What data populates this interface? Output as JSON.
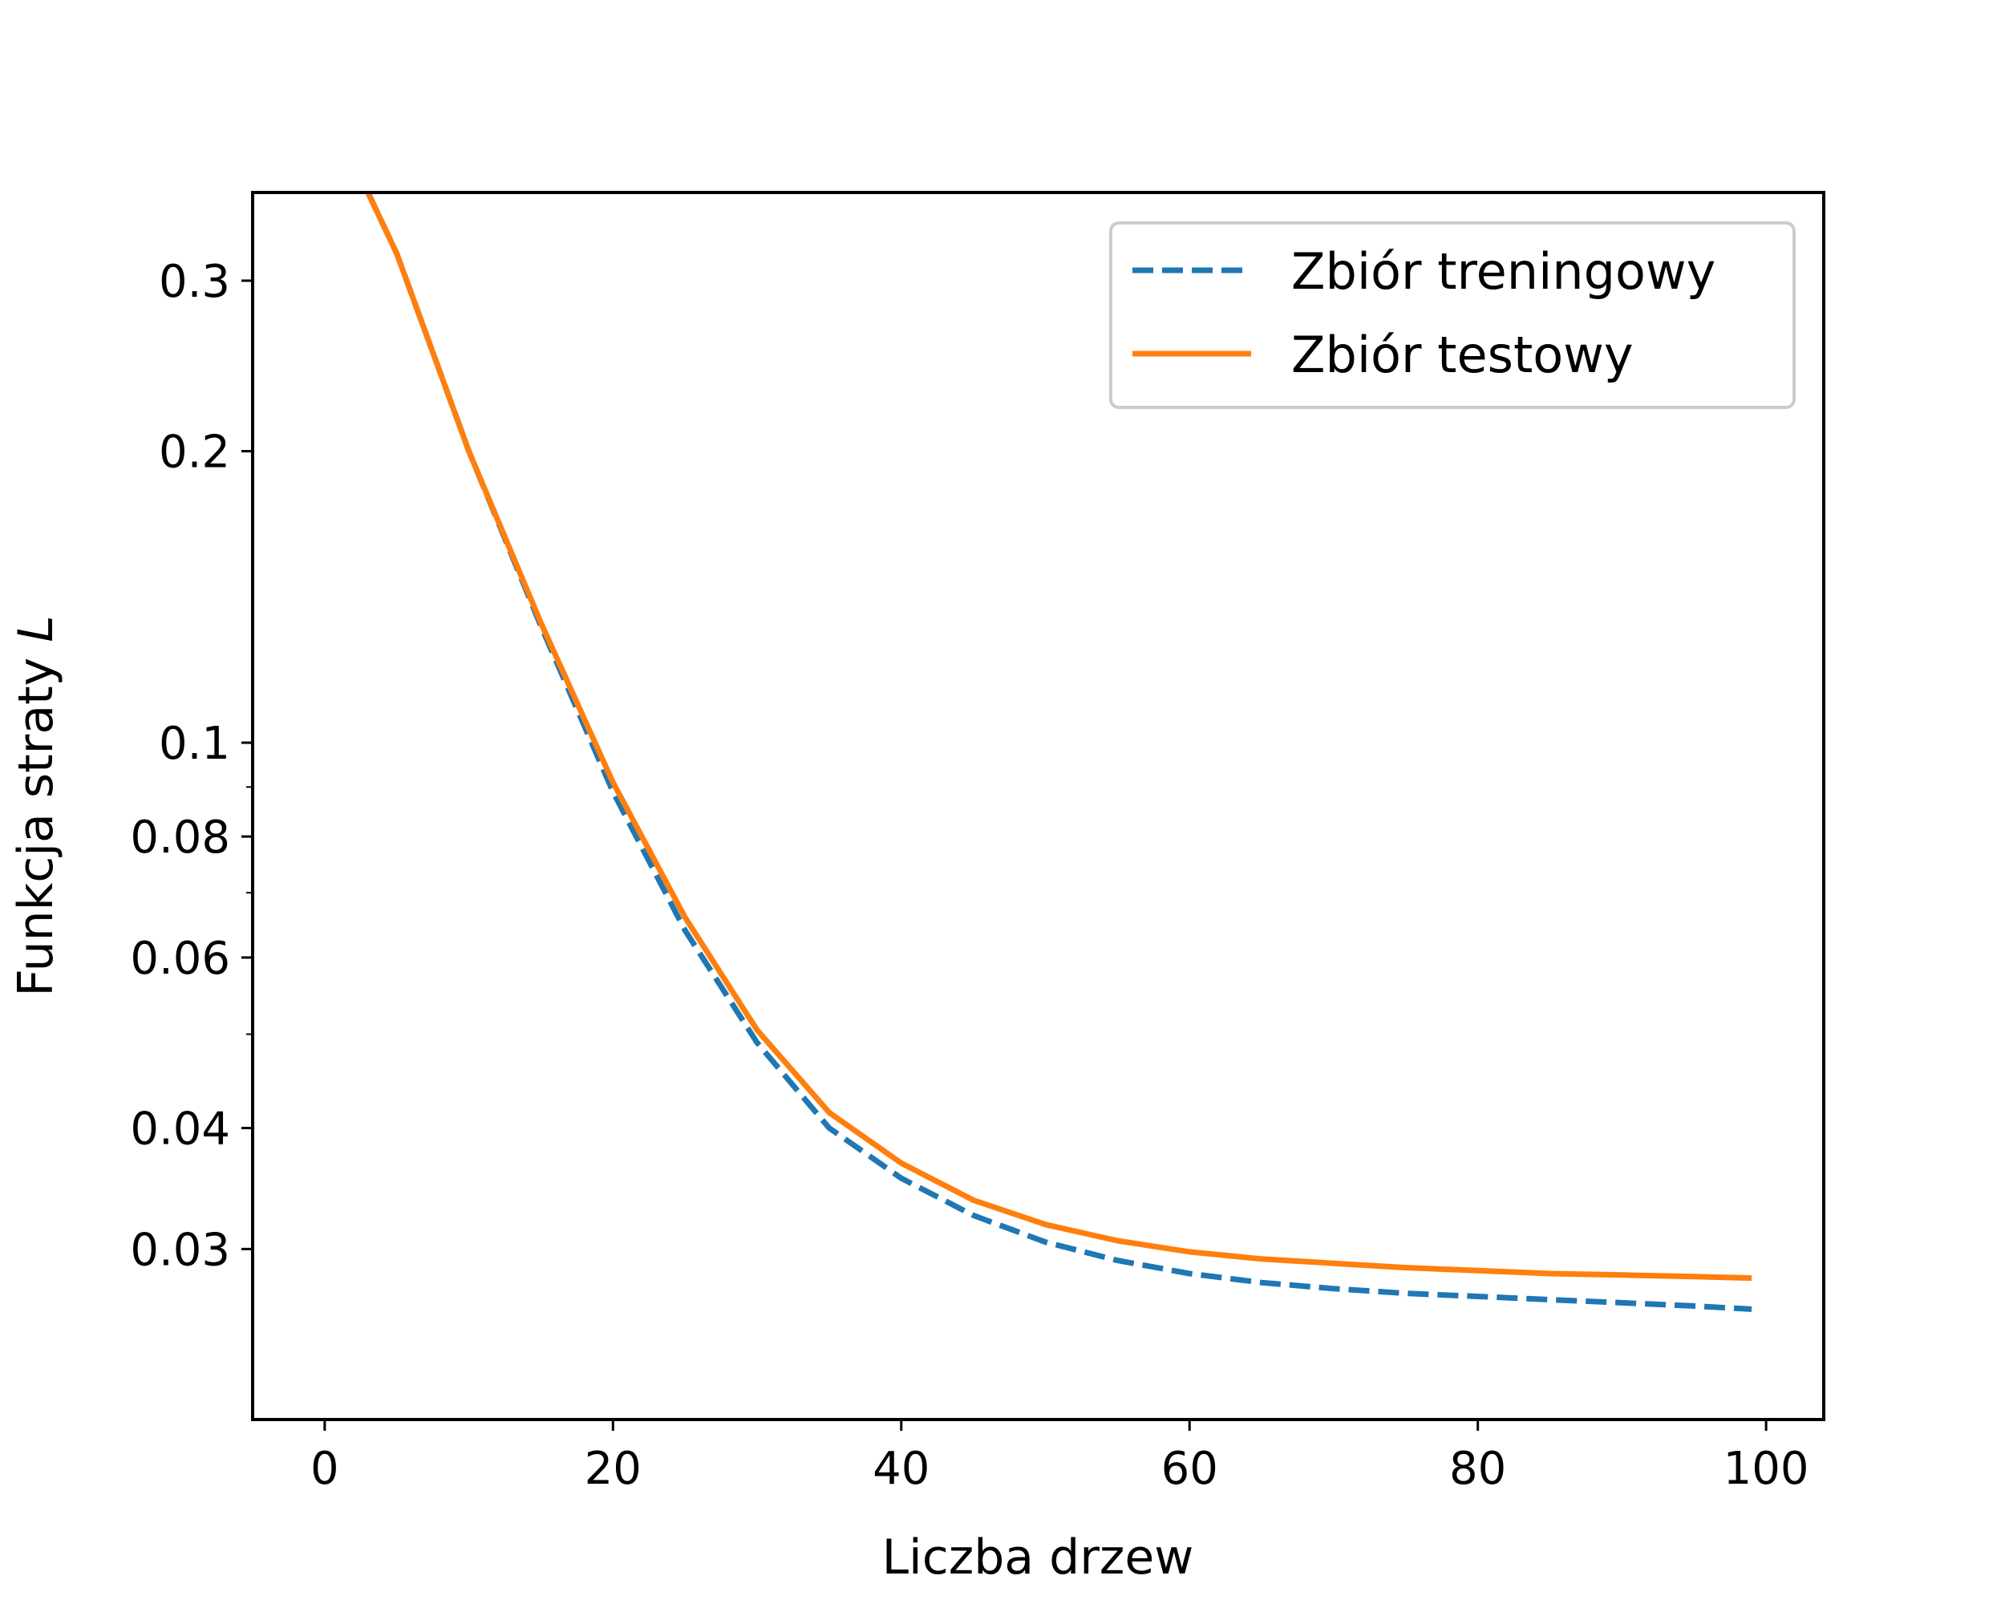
{
  "chart_data": {
    "type": "line",
    "xlabel": "Liczba drzew",
    "ylabel_prefix": "Funkcja straty ",
    "ylabel_var": "L",
    "yscale": "log",
    "xlim": [
      -5,
      104
    ],
    "ylim": [
      0.02,
      0.37
    ],
    "x_ticks": [
      0,
      20,
      40,
      60,
      80,
      100
    ],
    "x_tick_labels": [
      "0",
      "20",
      "40",
      "60",
      "80",
      "100"
    ],
    "y_ticks": [
      0.03,
      0.04,
      0.06,
      0.08,
      0.1,
      0.2,
      0.3
    ],
    "y_tick_labels": [
      "0.03",
      "0.04",
      "0.06",
      "0.08",
      "0.1",
      "0.2",
      "0.3"
    ],
    "y_minor_ticks": [
      0.05,
      0.07,
      0.09
    ],
    "grid": false,
    "legend_position": "top-right",
    "series": [
      {
        "name": "Zbiór treningowy",
        "color": "#1f77b4",
        "style": "dashed",
        "x": [
          3,
          5,
          10,
          15,
          20,
          25,
          30,
          35,
          40,
          45,
          50,
          55,
          60,
          65,
          70,
          75,
          80,
          85,
          90,
          95,
          99
        ],
        "y": [
          0.37,
          0.32,
          0.2,
          0.132,
          0.089,
          0.064,
          0.049,
          0.04,
          0.0355,
          0.0325,
          0.0305,
          0.0292,
          0.0283,
          0.0277,
          0.0273,
          0.027,
          0.0268,
          0.0266,
          0.0264,
          0.0262,
          0.026
        ]
      },
      {
        "name": "Zbiór testowy",
        "color": "#ff7f0e",
        "style": "solid",
        "x": [
          3,
          5,
          10,
          15,
          20,
          25,
          30,
          35,
          40,
          45,
          50,
          55,
          60,
          65,
          70,
          75,
          80,
          85,
          90,
          95,
          99
        ],
        "y": [
          0.37,
          0.32,
          0.2,
          0.133,
          0.091,
          0.066,
          0.0505,
          0.0415,
          0.0368,
          0.0337,
          0.0318,
          0.0306,
          0.0298,
          0.0293,
          0.029,
          0.0287,
          0.0285,
          0.0283,
          0.0282,
          0.0281,
          0.028
        ]
      }
    ]
  }
}
